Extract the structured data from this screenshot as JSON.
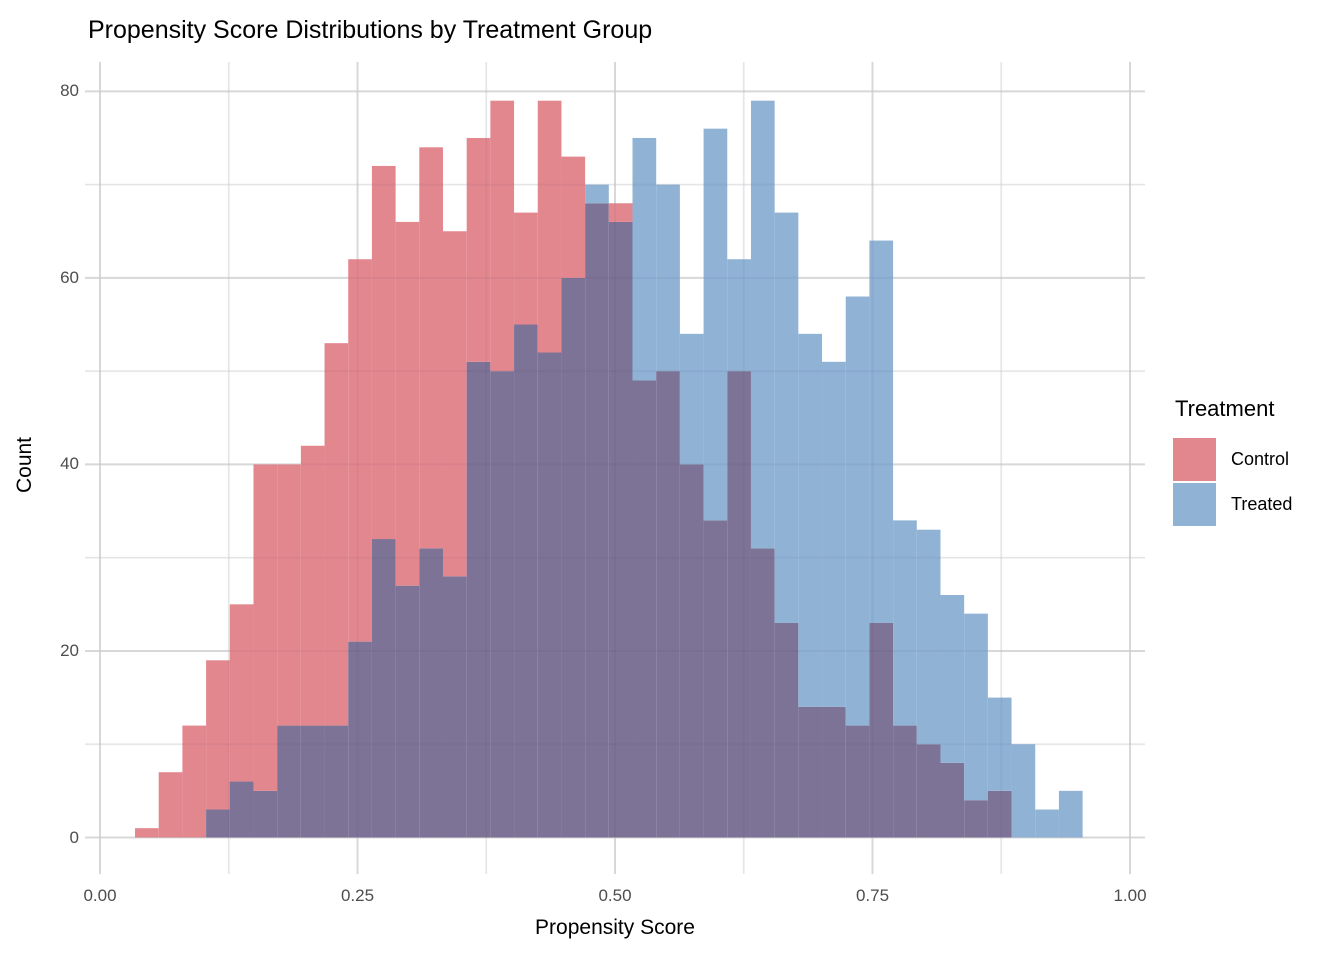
{
  "title": "Propensity Score Distributions by Treatment Group",
  "chart_data": {
    "type": "bar",
    "subtype": "overlaid-histogram",
    "title": "Propensity Score Distributions by Treatment Group",
    "xlabel": "Propensity Score",
    "ylabel": "Count",
    "legend_title": "Treatment",
    "legend_position": "right",
    "grid": "on",
    "xlim": [
      -0.015,
      1.015
    ],
    "ylim": [
      -4.3,
      83.2
    ],
    "x_tick_values": [
      0,
      0.25,
      0.5,
      0.75,
      1.0
    ],
    "x_tick_labels": [
      "0.00",
      "0.25",
      "0.50",
      "0.75",
      "1.00"
    ],
    "x_minor_values": [
      0.125,
      0.375,
      0.625,
      0.875
    ],
    "y_tick_values": [
      0,
      20,
      40,
      60,
      80
    ],
    "y_tick_labels": [
      "0",
      "20",
      "40",
      "60",
      "80"
    ],
    "y_minor_values": [
      10,
      30,
      50,
      70
    ],
    "bin_start": 0.034,
    "bin_width": 0.023,
    "series": [
      {
        "name": "Control",
        "color": "#E3878F",
        "counts": [
          1,
          7,
          12,
          19,
          25,
          40,
          40,
          42,
          53,
          62,
          72,
          66,
          74,
          65,
          75,
          79,
          67,
          79,
          73,
          68,
          68,
          49,
          50,
          40,
          34,
          50,
          31,
          23,
          14,
          14,
          12,
          23,
          12,
          10,
          8,
          4,
          5,
          0,
          0,
          0
        ]
      },
      {
        "name": "Treated",
        "color": "#90B2D5",
        "counts": [
          0,
          0,
          0,
          3,
          6,
          5,
          12,
          12,
          12,
          21,
          32,
          27,
          31,
          28,
          51,
          50,
          55,
          52,
          60,
          70,
          66,
          75,
          70,
          54,
          76,
          62,
          79,
          67,
          54,
          51,
          58,
          64,
          34,
          33,
          26,
          24,
          15,
          10,
          3,
          5
        ]
      }
    ],
    "overlap_color": "#7D7396",
    "colors": {
      "grid_major": "#E2E2E2",
      "grid_minor": "#F0F0F0",
      "tick_label": "#4D4D4D",
      "text": "#000000",
      "background": "#FFFFFF"
    }
  }
}
